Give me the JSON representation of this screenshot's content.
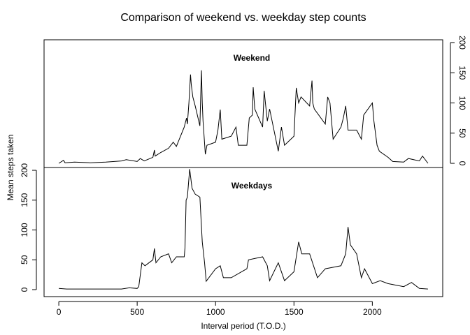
{
  "title": "Comparison of weekend vs. weekday step counts",
  "xlabel": "Interval period (T.O.D.)",
  "ylabel": "Mean steps taken",
  "chart_data": [
    {
      "type": "line",
      "title": "Weekend",
      "color": "#000000",
      "yaxis": "right",
      "xlim": [
        -94,
        2449
      ],
      "ylim": [
        -6.9,
        204.6
      ],
      "yticks": [
        0,
        50,
        100,
        150,
        200
      ],
      "x": [
        0,
        30,
        40,
        100,
        200,
        300,
        400,
        430,
        500,
        520,
        545,
        600,
        610,
        615,
        650,
        700,
        730,
        750,
        800,
        815,
        820,
        830,
        840,
        845,
        855,
        870,
        900,
        910,
        915,
        920,
        935,
        945,
        1000,
        1015,
        1030,
        1040,
        1100,
        1130,
        1145,
        1200,
        1215,
        1235,
        1240,
        1250,
        1300,
        1310,
        1330,
        1345,
        1400,
        1420,
        1440,
        1500,
        1515,
        1530,
        1545,
        1600,
        1615,
        1620,
        1630,
        1700,
        1715,
        1730,
        1750,
        1800,
        1815,
        1830,
        1845,
        1900,
        1930,
        1945,
        2000,
        2010,
        2030,
        2045,
        2100,
        2130,
        2200,
        2230,
        2300,
        2320,
        2355
      ],
      "values": [
        0,
        5,
        1,
        2,
        1,
        2,
        4,
        6,
        3,
        8,
        4,
        10,
        22,
        12,
        18,
        25,
        35,
        28,
        60,
        75,
        65,
        100,
        147,
        130,
        110,
        95,
        62,
        154,
        100,
        70,
        15,
        30,
        35,
        55,
        89,
        40,
        45,
        60,
        30,
        30,
        75,
        80,
        126,
        90,
        60,
        120,
        70,
        90,
        20,
        60,
        30,
        45,
        125,
        100,
        110,
        95,
        137,
        100,
        90,
        65,
        110,
        100,
        40,
        60,
        75,
        95,
        55,
        55,
        40,
        80,
        100,
        70,
        30,
        20,
        10,
        3,
        2,
        8,
        4,
        12,
        0
      ]
    },
    {
      "type": "line",
      "title": "Weekdays",
      "color": "#000000",
      "yaxis": "left",
      "xlim": [
        -94,
        2449
      ],
      "ylim": [
        -11.7,
        204.7
      ],
      "yticks": [
        0,
        50,
        100,
        150,
        200
      ],
      "xticks": [
        0,
        500,
        1000,
        1500,
        2000
      ],
      "x": [
        0,
        50,
        100,
        200,
        300,
        400,
        450,
        500,
        510,
        530,
        550,
        600,
        610,
        620,
        650,
        700,
        720,
        750,
        800,
        805,
        812,
        820,
        835,
        845,
        850,
        870,
        900,
        915,
        930,
        940,
        1000,
        1030,
        1050,
        1100,
        1200,
        1210,
        1300,
        1330,
        1345,
        1400,
        1440,
        1500,
        1530,
        1550,
        1600,
        1650,
        1700,
        1800,
        1830,
        1845,
        1860,
        1900,
        1930,
        1950,
        2000,
        2050,
        2100,
        2200,
        2250,
        2300,
        2355
      ],
      "values": [
        2,
        1,
        1,
        1,
        1,
        1,
        3,
        2,
        5,
        45,
        40,
        50,
        69,
        45,
        55,
        60,
        45,
        55,
        55,
        70,
        150,
        155,
        202,
        180,
        170,
        160,
        155,
        80,
        45,
        14,
        35,
        40,
        20,
        20,
        35,
        50,
        55,
        40,
        15,
        45,
        15,
        30,
        80,
        60,
        60,
        20,
        35,
        40,
        60,
        105,
        75,
        60,
        20,
        35,
        10,
        15,
        10,
        5,
        12,
        2,
        1
      ]
    }
  ]
}
